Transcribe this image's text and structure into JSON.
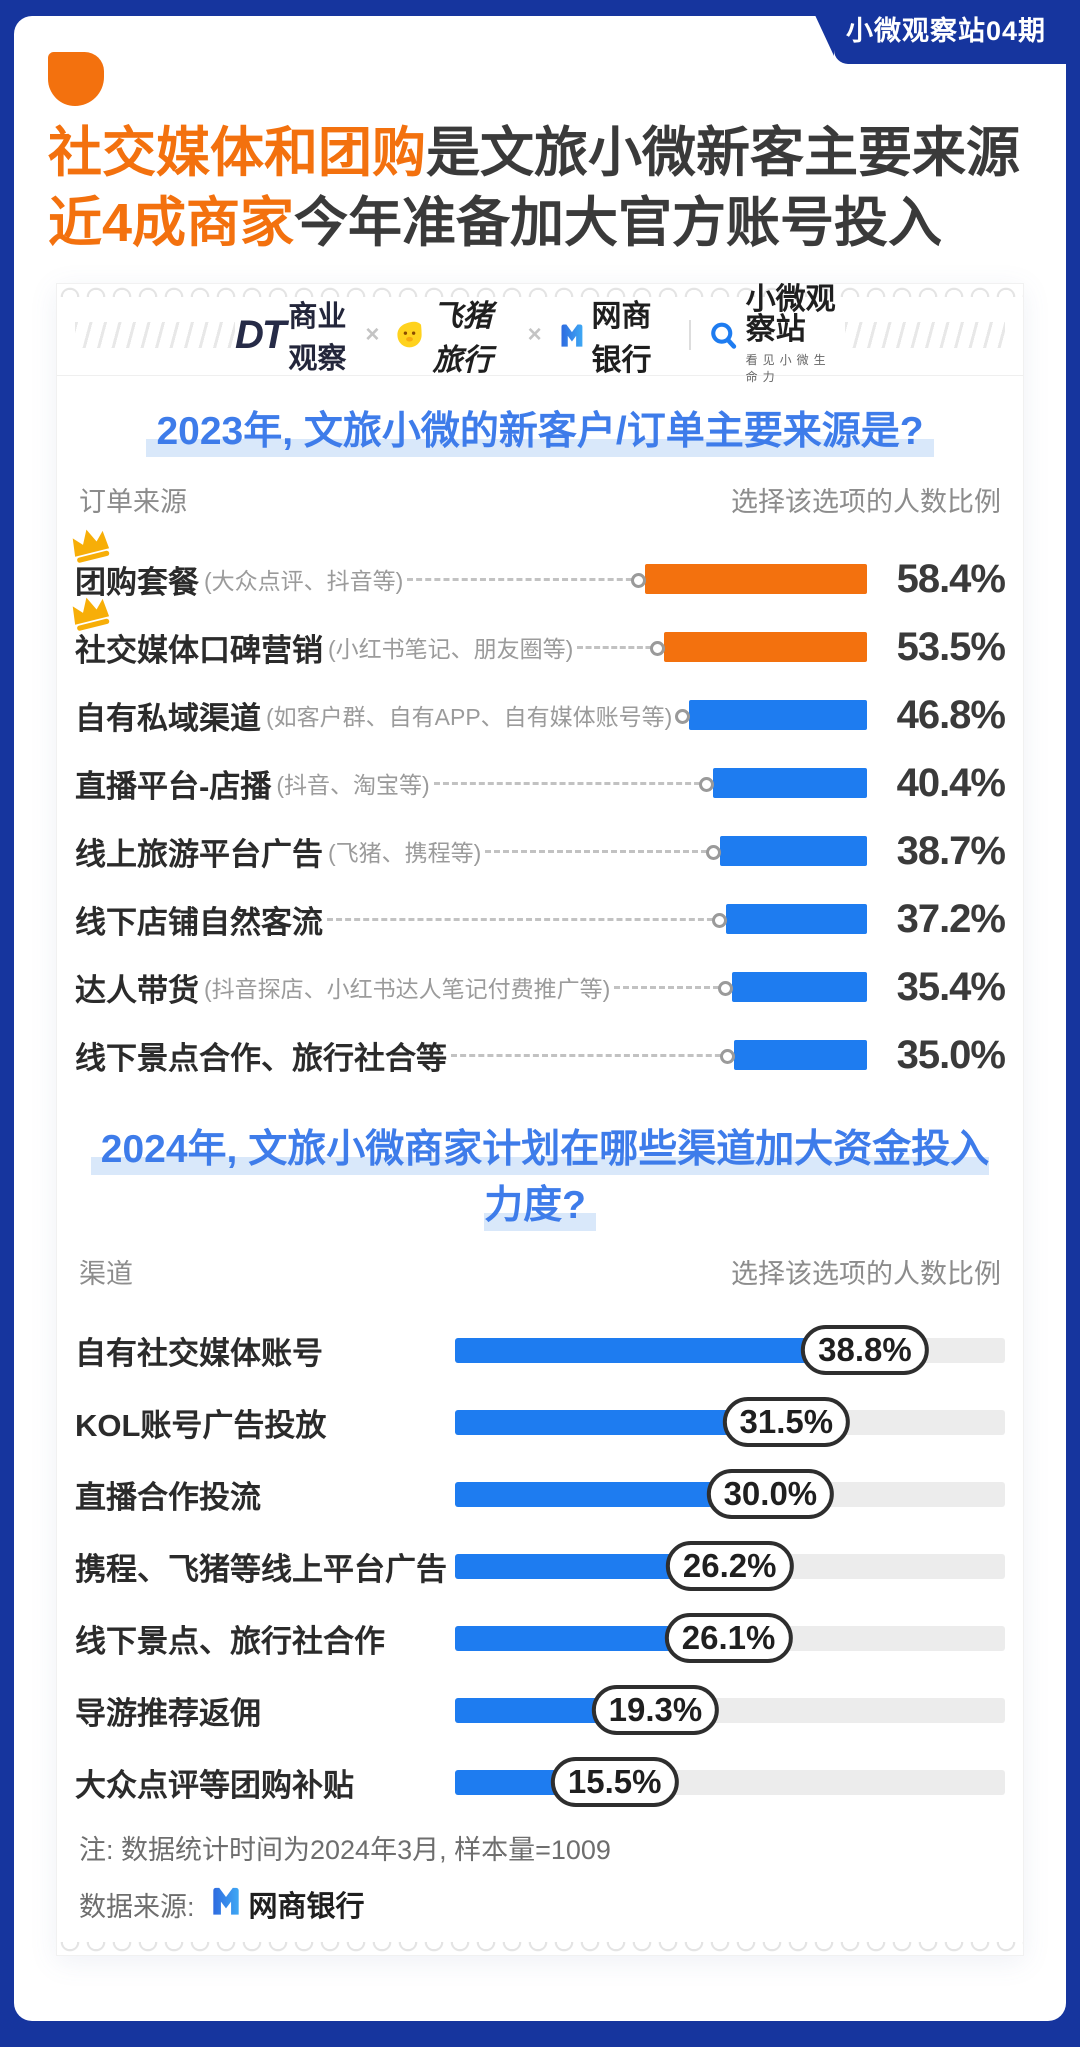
{
  "page": {
    "badge": "小微观察站04期"
  },
  "headline": {
    "line1_highlight": "社交媒体和团购",
    "line1_rest": "是文旅小微新客主要来源",
    "line2_highlight": "近4成商家",
    "line2_rest": "今年准备加大官方账号投入"
  },
  "logos": {
    "dt_mark": "DT",
    "dt_text": "商业观察",
    "sep1": "×",
    "fliggy": "飞猪旅行",
    "sep2": "×",
    "mybank": "网商银行",
    "station_name": "小微观察站",
    "station_tagline": "看见小微生命力"
  },
  "chart1": {
    "title": "2023年, 文旅小微的新客户/订单主要来源是?",
    "col_left": "订单来源",
    "col_right": "选择该选项的人数比例",
    "rows": [
      {
        "label": "团购套餐",
        "paren": "(大众点评、抖音等)",
        "value": 58.4,
        "pct": "58.4%",
        "highlight": true,
        "crown": true
      },
      {
        "label": "社交媒体口碑营销",
        "paren": "(小红书笔记、朋友圈等)",
        "value": 53.5,
        "pct": "53.5%",
        "highlight": true,
        "crown": true
      },
      {
        "label": "自有私域渠道",
        "paren": "(如客户群、自有APP、自有媒体账号等)",
        "value": 46.8,
        "pct": "46.8%",
        "highlight": false,
        "crown": false
      },
      {
        "label": "直播平台-店播",
        "paren": "(抖音、淘宝等)",
        "value": 40.4,
        "pct": "40.4%",
        "highlight": false,
        "crown": false
      },
      {
        "label": "线上旅游平台广告",
        "paren": "(飞猪、携程等)",
        "value": 38.7,
        "pct": "38.7%",
        "highlight": false,
        "crown": false
      },
      {
        "label": "线下店铺自然客流",
        "paren": "",
        "value": 37.2,
        "pct": "37.2%",
        "highlight": false,
        "crown": false
      },
      {
        "label": "达人带货",
        "paren": "(抖音探店、小红书达人笔记付费推广等)",
        "value": 35.4,
        "pct": "35.4%",
        "highlight": false,
        "crown": false
      },
      {
        "label": "线下景点合作、旅行社合等",
        "paren": "",
        "value": 35.0,
        "pct": "35.0%",
        "highlight": false,
        "crown": false
      }
    ]
  },
  "chart2": {
    "title": "2024年, 文旅小微商家计划在哪些渠道加大资金投入力度?",
    "col_left": "渠道",
    "col_right": "选择该选项的人数比例",
    "rows": [
      {
        "label": "自有社交媒体账号",
        "value": 38.8,
        "pct": "38.8%"
      },
      {
        "label": "KOL账号广告投放",
        "value": 31.5,
        "pct": "31.5%"
      },
      {
        "label": "直播合作投流",
        "value": 30.0,
        "pct": "30.0%"
      },
      {
        "label": "携程、飞猪等线上平台广告",
        "value": 26.2,
        "pct": "26.2%"
      },
      {
        "label": "线下景点、旅行社合作",
        "value": 26.1,
        "pct": "26.1%"
      },
      {
        "label": "导游推荐返佣",
        "value": 19.3,
        "pct": "19.3%"
      },
      {
        "label": "大众点评等团购补贴",
        "value": 15.5,
        "pct": "15.5%"
      }
    ]
  },
  "footer": {
    "note": "注: 数据统计时间为2024年3月, 样本量=1009",
    "source_label": "数据来源:",
    "source_name": "网商银行"
  },
  "colors": {
    "background_blue": "#16359E",
    "accent_orange": "#F3710E",
    "bar_blue": "#1E7CF0",
    "title_blue": "#3E7CEA",
    "title_highlight": "#D9E8FA",
    "track_gray": "#ECECEC",
    "crown_gold": "#F7AE08"
  },
  "chart_data": [
    {
      "type": "bar",
      "orientation": "horizontal",
      "title": "2023年, 文旅小微的新客户/订单主要来源是?",
      "xlabel": "选择该选项的人数比例",
      "ylabel": "订单来源",
      "unit": "%",
      "categories": [
        "团购套餐 (大众点评、抖音等)",
        "社交媒体口碑营销 (小红书笔记、朋友圈等)",
        "自有私域渠道 (如客户群、自有APP、自有媒体账号等)",
        "直播平台-店播 (抖音、淘宝等)",
        "线上旅游平台广告 (飞猪、携程等)",
        "线下店铺自然客流",
        "达人带货 (抖音探店、小红书达人笔记付费推广等)",
        "线下景点合作、旅行社合等"
      ],
      "values": [
        58.4,
        53.5,
        46.8,
        40.4,
        38.7,
        37.2,
        35.4,
        35.0
      ],
      "bar_colors": [
        "#F3710E",
        "#F3710E",
        "#1E7CF0",
        "#1E7CF0",
        "#1E7CF0",
        "#1E7CF0",
        "#1E7CF0",
        "#1E7CF0"
      ],
      "annotations": "top two rows marked with crown icons",
      "grid": false,
      "legend": false
    },
    {
      "type": "bar",
      "orientation": "horizontal",
      "title": "2024年, 文旅小微商家计划在哪些渠道加大资金投入力度?",
      "xlabel": "选择该选项的人数比例",
      "ylabel": "渠道",
      "unit": "%",
      "categories": [
        "自有社交媒体账号",
        "KOL账号广告投放",
        "直播合作投流",
        "携程、飞猪等线上平台广告",
        "线下景点、旅行社合作",
        "导游推荐返佣",
        "大众点评等团购补贴"
      ],
      "values": [
        38.8,
        31.5,
        30.0,
        26.2,
        26.1,
        19.3,
        15.5
      ],
      "bar_colors": [
        "#1E7CF0",
        "#1E7CF0",
        "#1E7CF0",
        "#1E7CF0",
        "#1E7CF0",
        "#1E7CF0",
        "#1E7CF0"
      ],
      "annotations": "values shown in white outlined pills at end of each bar, bars drawn on gray tracks",
      "grid": false,
      "legend": false
    }
  ]
}
